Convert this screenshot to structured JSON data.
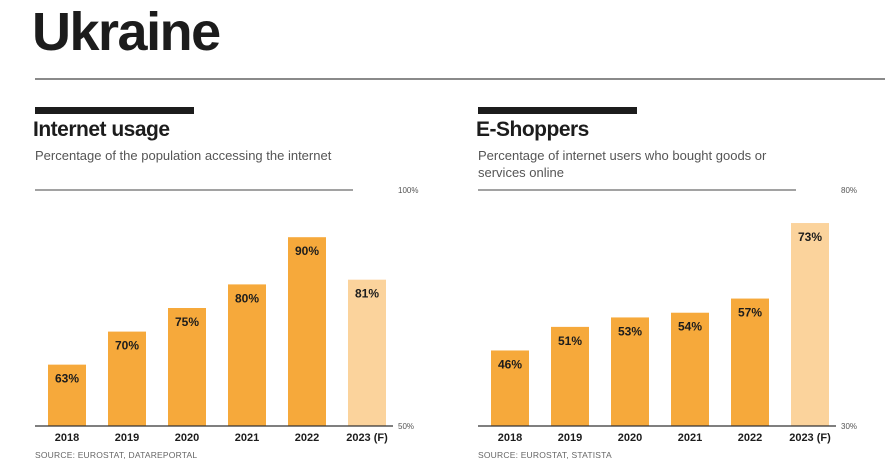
{
  "page": {
    "title": "Ukraine"
  },
  "colors": {
    "bar": "#F6A93B",
    "bar_forecast": "#FBD39C",
    "ink": "#1c1c1c",
    "rule": "#8a8a8a"
  },
  "panels": [
    {
      "title": "Internet usage",
      "subtitle": "Percentage of the population accessing the internet",
      "source": "SOURCE: EUROSTAT, DATAREPORTAL"
    },
    {
      "title": "E-Shoppers",
      "subtitle": "Percentage of internet users who bought goods or services online",
      "source": "SOURCE: EUROSTAT, STATISTA"
    }
  ],
  "chart_data": [
    {
      "type": "bar",
      "title": "Internet usage",
      "subtitle": "Percentage of the population accessing the internet",
      "categories": [
        "2018",
        "2019",
        "2020",
        "2021",
        "2022",
        "2023 (F)"
      ],
      "values": [
        63,
        70,
        75,
        80,
        90,
        81
      ],
      "labels": [
        "63%",
        "70%",
        "75%",
        "80%",
        "90%",
        "81%"
      ],
      "forecast": [
        false,
        false,
        false,
        false,
        false,
        true
      ],
      "ylim": [
        50,
        100
      ],
      "ytick_labels": {
        "min": "50%",
        "max": "100%"
      },
      "grid": false,
      "legend": "none"
    },
    {
      "type": "bar",
      "title": "E-Shoppers",
      "subtitle": "Percentage of internet users who bought goods or services online",
      "categories": [
        "2018",
        "2019",
        "2020",
        "2021",
        "2022",
        "2023 (F)"
      ],
      "values": [
        46,
        51,
        53,
        54,
        57,
        73
      ],
      "labels": [
        "46%",
        "51%",
        "53%",
        "54%",
        "57%",
        "73%"
      ],
      "forecast": [
        false,
        false,
        false,
        false,
        false,
        true
      ],
      "ylim": [
        30,
        80
      ],
      "ytick_labels": {
        "min": "30%",
        "max": "80%"
      },
      "grid": false,
      "legend": "none"
    }
  ]
}
